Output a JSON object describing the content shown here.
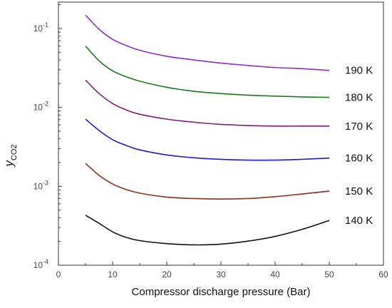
{
  "chart_data": {
    "type": "line",
    "xlabel": "Compressor discharge pressure (Bar)",
    "ylabel": {
      "main": "y",
      "sub": "CO2"
    },
    "xlim": [
      0,
      60
    ],
    "ylim": [
      0.0001,
      0.2
    ],
    "y_scale": "log",
    "grid": false,
    "legend": "inline labels at right end of each line",
    "x_ticks": [
      0,
      10,
      20,
      30,
      40,
      50,
      60
    ],
    "y_ticks": [
      {
        "value": 0.0001,
        "base": "10",
        "exp": "-4"
      },
      {
        "value": 0.001,
        "base": "10",
        "exp": "-3"
      },
      {
        "value": 0.01,
        "base": "10",
        "exp": "-2"
      },
      {
        "value": 0.1,
        "base": "10",
        "exp": "-1"
      }
    ],
    "x": [
      5,
      7.5,
      10,
      12.5,
      15,
      20,
      25,
      30,
      35,
      40,
      45,
      50
    ],
    "series": [
      {
        "name": "190 K",
        "color": "#8b2fc9",
        "values": [
          0.148,
          0.098,
          0.073,
          0.061,
          0.053,
          0.0445,
          0.04,
          0.0365,
          0.034,
          0.032,
          0.031,
          0.0295
        ]
      },
      {
        "name": "180 K",
        "color": "#1f7a1f",
        "values": [
          0.06,
          0.039,
          0.029,
          0.0245,
          0.0215,
          0.018,
          0.016,
          0.015,
          0.0143,
          0.0139,
          0.0136,
          0.0134
        ]
      },
      {
        "name": "170 K",
        "color": "#7b1f7b",
        "values": [
          0.0222,
          0.015,
          0.0112,
          0.0093,
          0.0082,
          0.0071,
          0.0065,
          0.0061,
          0.0059,
          0.0058,
          0.0058,
          0.0058
        ]
      },
      {
        "name": "160 K",
        "color": "#1c1ccc",
        "values": [
          0.0071,
          0.0051,
          0.0039,
          0.0033,
          0.0029,
          0.0025,
          0.0023,
          0.0022,
          0.00215,
          0.00215,
          0.0022,
          0.00228
        ]
      },
      {
        "name": "150 K",
        "color": "#8b2e1a",
        "values": [
          0.00195,
          0.00138,
          0.00107,
          0.00091,
          0.00082,
          0.00073,
          0.0007,
          0.00069,
          0.0007,
          0.00074,
          0.0008,
          0.00087
        ]
      },
      {
        "name": "140 K",
        "color": "#111111",
        "values": [
          0.00043,
          0.00034,
          0.000265,
          0.000225,
          0.000205,
          0.000188,
          0.000181,
          0.000185,
          0.000202,
          0.000232,
          0.000285,
          0.00037
        ]
      }
    ]
  }
}
